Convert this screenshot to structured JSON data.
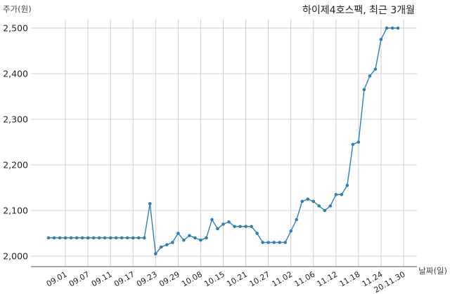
{
  "chart_data": {
    "type": "line",
    "title": "하이제4호스팩, 최근 3개월",
    "ylabel": "주가(원)",
    "xlabel": "날짜(일)",
    "ylim": [
      1990,
      2520
    ],
    "y_ticks": [
      2000,
      2100,
      2200,
      2300,
      2400,
      2500
    ],
    "y_tick_labels": [
      "2,000",
      "2,100",
      "2,200",
      "2,300",
      "2,400",
      "2,500"
    ],
    "grid": true,
    "x_tick_labels": [
      "09.01",
      "09.07",
      "09.11",
      "09.17",
      "09.23",
      "09.29",
      "10.08",
      "10.15",
      "10.21",
      "10.27",
      "11.02",
      "11.06",
      "11.12",
      "11.18",
      "11.24",
      "20.11.30"
    ],
    "x_tick_index": [
      3,
      7,
      11,
      15,
      19,
      23,
      27,
      31,
      35,
      39,
      43,
      47,
      51,
      55,
      59,
      63
    ],
    "series": [
      {
        "color": "#2f7fb5",
        "values": [
          2040,
          2040,
          2040,
          2040,
          2040,
          2040,
          2040,
          2040,
          2040,
          2040,
          2040,
          2040,
          2040,
          2040,
          2040,
          2040,
          2040,
          2040,
          2115,
          2005,
          2020,
          2025,
          2030,
          2050,
          2035,
          2045,
          2040,
          2035,
          2040,
          2080,
          2060,
          2070,
          2075,
          2065,
          2065,
          2065,
          2065,
          2050,
          2030,
          2030,
          2030,
          2030,
          2030,
          2055,
          2080,
          2120,
          2125,
          2120,
          2110,
          2100,
          2110,
          2135,
          2135,
          2155,
          2245,
          2250,
          2365,
          2395,
          2410,
          2475,
          2500,
          2500,
          2500
        ]
      }
    ]
  }
}
